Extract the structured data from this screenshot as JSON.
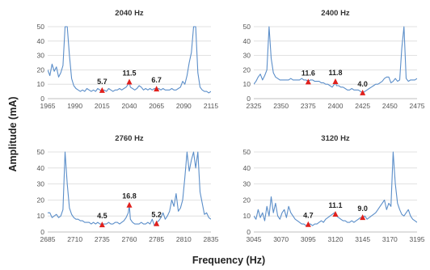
{
  "figure": {
    "xlabel": "Frequency (Hz)",
    "ylabel": "Amplitude (mA)",
    "colors": {
      "line": "#5b8ec9",
      "marker": "#e0201c",
      "grid": "#d9d9d9",
      "axis": "#bfbfbf"
    }
  },
  "chart_data": [
    {
      "type": "line",
      "title": "2040 Hz",
      "xlim": [
        1965,
        2115
      ],
      "ylim": [
        0,
        50
      ],
      "xticks": [
        "1965",
        "1990",
        "2015",
        "2040",
        "2065",
        "2090",
        "2115"
      ],
      "yticks": [
        "0",
        "10",
        "20",
        "30",
        "40",
        "50"
      ],
      "grid": true,
      "series": [
        {
          "x": [
            1965,
            1967,
            1969,
            1971,
            1973,
            1975,
            1977,
            1979,
            1981,
            1983,
            1985,
            1987,
            1989,
            1991,
            1993,
            1995,
            1997,
            1999,
            2001,
            2003,
            2005,
            2007,
            2009,
            2011,
            2013,
            2015,
            2017,
            2019,
            2021,
            2023,
            2025,
            2027,
            2029,
            2031,
            2033,
            2035,
            2037,
            2039,
            2040,
            2041,
            2043,
            2045,
            2047,
            2049,
            2051,
            2053,
            2055,
            2057,
            2059,
            2061,
            2063,
            2065,
            2067,
            2069,
            2071,
            2073,
            2075,
            2077,
            2079,
            2081,
            2083,
            2085,
            2087,
            2089,
            2091,
            2093,
            2095,
            2097,
            2099,
            2101,
            2103,
            2105,
            2107,
            2109,
            2111,
            2113,
            2115
          ],
          "y": [
            20,
            16,
            24,
            19,
            22,
            15,
            18,
            23,
            50,
            50,
            30,
            14,
            9,
            7,
            6,
            5,
            6,
            5,
            7,
            6,
            5,
            6,
            5,
            7,
            6,
            5,
            6,
            5,
            7,
            6,
            5,
            6,
            6,
            7,
            6,
            7,
            8,
            10,
            11.5,
            8,
            7,
            6,
            7,
            9,
            8,
            6,
            7,
            6,
            7,
            6,
            7,
            6,
            7,
            6,
            7,
            6,
            6,
            6,
            7,
            6,
            6,
            7,
            8,
            12,
            10,
            16,
            25,
            32,
            50,
            50,
            18,
            8,
            6,
            5,
            5,
            4,
            5
          ]
        }
      ],
      "markers": [
        {
          "x": 2015,
          "y": 5.7,
          "label": "5.7"
        },
        {
          "x": 2040,
          "y": 11.5,
          "label": "11.5"
        },
        {
          "x": 2065,
          "y": 6.7,
          "label": "6.7"
        }
      ]
    },
    {
      "type": "line",
      "title": "2400 Hz",
      "xlim": [
        2325,
        2475
      ],
      "ylim": [
        0,
        50
      ],
      "xticks": [
        "2325",
        "2350",
        "2375",
        "2400",
        "2425",
        "2450",
        "2475"
      ],
      "yticks": [
        "0",
        "10",
        "20",
        "30",
        "40",
        "50"
      ],
      "grid": true,
      "series": [
        {
          "x": [
            2325,
            2327,
            2329,
            2331,
            2333,
            2335,
            2337,
            2339,
            2341,
            2343,
            2345,
            2347,
            2349,
            2351,
            2353,
            2355,
            2357,
            2359,
            2361,
            2363,
            2365,
            2367,
            2369,
            2371,
            2373,
            2375,
            2377,
            2379,
            2381,
            2383,
            2385,
            2387,
            2389,
            2391,
            2393,
            2395,
            2397,
            2399,
            2400,
            2401,
            2403,
            2405,
            2407,
            2409,
            2411,
            2413,
            2415,
            2417,
            2419,
            2421,
            2423,
            2425,
            2427,
            2429,
            2431,
            2433,
            2435,
            2437,
            2439,
            2441,
            2443,
            2445,
            2447,
            2449,
            2451,
            2453,
            2455,
            2457,
            2459,
            2461,
            2463,
            2465,
            2467,
            2469,
            2471,
            2473,
            2475
          ],
          "y": [
            10,
            12,
            15,
            17,
            13,
            16,
            20,
            50,
            28,
            18,
            15,
            14,
            13,
            13,
            13,
            13,
            13,
            14,
            13,
            13,
            13,
            13,
            14,
            13,
            13,
            12,
            13,
            13,
            12,
            12,
            12,
            11,
            11,
            10,
            10,
            9,
            8,
            10,
            11.8,
            9,
            9,
            8,
            8,
            7,
            6,
            6,
            7,
            6,
            6,
            6,
            5,
            4,
            5,
            6,
            7,
            8,
            9,
            10,
            10,
            11,
            12,
            14,
            15,
            15,
            11,
            12,
            14,
            12,
            13,
            35,
            50,
            14,
            12,
            13,
            13,
            13,
            14
          ]
        }
      ],
      "markers": [
        {
          "x": 2375,
          "y": 11.6,
          "label": "11.6"
        },
        {
          "x": 2400,
          "y": 11.8,
          "label": "11.8"
        },
        {
          "x": 2425,
          "y": 4.0,
          "label": "4.0"
        }
      ]
    },
    {
      "type": "line",
      "title": "2760 Hz",
      "xlim": [
        2685,
        2835
      ],
      "ylim": [
        0,
        50
      ],
      "xticks": [
        "2685",
        "2710",
        "2735",
        "2760",
        "2785",
        "2810",
        "2835"
      ],
      "yticks": [
        "0",
        "10",
        "20",
        "30",
        "40",
        "50"
      ],
      "grid": true,
      "series": [
        {
          "x": [
            2685,
            2687,
            2689,
            2691,
            2693,
            2695,
            2697,
            2699,
            2701,
            2703,
            2705,
            2707,
            2709,
            2711,
            2713,
            2715,
            2717,
            2719,
            2721,
            2723,
            2725,
            2727,
            2729,
            2731,
            2733,
            2735,
            2737,
            2739,
            2741,
            2743,
            2745,
            2747,
            2749,
            2751,
            2753,
            2755,
            2757,
            2759,
            2760,
            2761,
            2763,
            2765,
            2767,
            2769,
            2771,
            2773,
            2775,
            2777,
            2779,
            2781,
            2783,
            2785,
            2787,
            2789,
            2791,
            2793,
            2795,
            2797,
            2799,
            2801,
            2803,
            2805,
            2807,
            2809,
            2811,
            2813,
            2815,
            2817,
            2819,
            2821,
            2823,
            2825,
            2827,
            2829,
            2831,
            2833,
            2835
          ],
          "y": [
            12,
            12,
            9,
            10,
            11,
            9,
            10,
            14,
            50,
            30,
            15,
            11,
            9,
            8,
            8,
            7,
            7,
            6,
            6,
            6,
            5,
            6,
            5,
            6,
            5,
            5,
            5,
            5,
            6,
            5,
            5,
            6,
            6,
            5,
            6,
            7,
            9,
            12,
            16.8,
            8,
            6,
            5,
            5,
            5,
            6,
            5,
            5,
            6,
            5,
            8,
            4,
            6,
            7,
            9,
            12,
            8,
            10,
            13,
            20,
            16,
            24,
            13,
            15,
            20,
            34,
            50,
            38,
            45,
            50,
            40,
            50,
            25,
            18,
            11,
            12,
            9,
            8
          ]
        }
      ],
      "markers": [
        {
          "x": 2735,
          "y": 4.5,
          "label": "4.5"
        },
        {
          "x": 2760,
          "y": 16.8,
          "label": "16.8"
        },
        {
          "x": 2785,
          "y": 5.2,
          "label": "5.2"
        }
      ]
    },
    {
      "type": "line",
      "title": "3120 Hz",
      "xlim": [
        3045,
        3195
      ],
      "ylim": [
        0,
        50
      ],
      "xticks": [
        "3045",
        "3070",
        "3095",
        "3120",
        "3145",
        "3170",
        "3195"
      ],
      "yticks": [
        "0",
        "10",
        "20",
        "30",
        "40",
        "50"
      ],
      "grid": true,
      "series": [
        {
          "x": [
            3045,
            3047,
            3049,
            3051,
            3053,
            3055,
            3057,
            3059,
            3061,
            3063,
            3065,
            3067,
            3069,
            3071,
            3073,
            3075,
            3077,
            3079,
            3081,
            3083,
            3085,
            3087,
            3089,
            3091,
            3093,
            3095,
            3097,
            3099,
            3101,
            3103,
            3105,
            3107,
            3109,
            3111,
            3113,
            3115,
            3117,
            3119,
            3120,
            3121,
            3123,
            3125,
            3127,
            3129,
            3131,
            3133,
            3135,
            3137,
            3139,
            3141,
            3143,
            3145,
            3147,
            3149,
            3151,
            3153,
            3155,
            3157,
            3159,
            3161,
            3163,
            3165,
            3167,
            3169,
            3171,
            3173,
            3175,
            3177,
            3179,
            3181,
            3183,
            3185,
            3187,
            3189,
            3191,
            3193,
            3195
          ],
          "y": [
            10,
            8,
            14,
            9,
            12,
            7,
            16,
            10,
            22,
            12,
            18,
            10,
            8,
            12,
            14,
            9,
            16,
            12,
            10,
            8,
            7,
            6,
            5,
            5,
            4,
            5,
            5,
            4,
            5,
            5,
            6,
            7,
            6,
            8,
            9,
            10,
            11,
            12,
            11.1,
            10,
            9,
            8,
            7,
            7,
            6,
            6,
            7,
            6,
            7,
            8,
            9,
            9,
            10,
            8,
            9,
            10,
            11,
            12,
            14,
            16,
            18,
            20,
            14,
            18,
            16,
            50,
            30,
            18,
            14,
            11,
            10,
            12,
            14,
            10,
            8,
            7,
            6
          ]
        }
      ],
      "markers": [
        {
          "x": 3095,
          "y": 4.7,
          "label": "4.7"
        },
        {
          "x": 3120,
          "y": 11.1,
          "label": "11.1"
        },
        {
          "x": 3145,
          "y": 9.0,
          "label": "9.0"
        }
      ]
    }
  ]
}
